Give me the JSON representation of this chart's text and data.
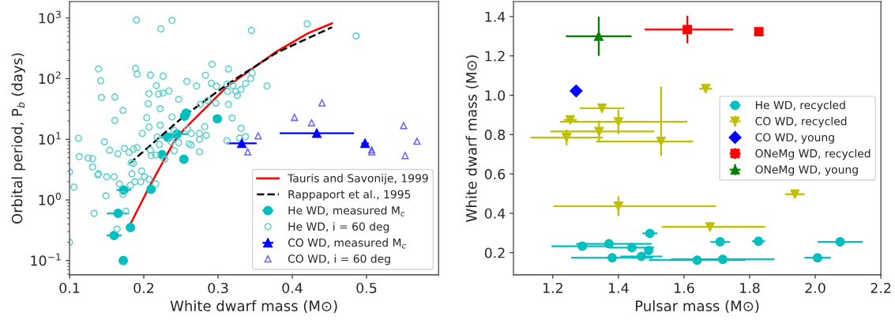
{
  "chart_data": [
    {
      "type": "scatter",
      "xlabel": "White dwarf mass (M⊙)",
      "ylabel": "Orbital period, P$_{b}$ (days)",
      "log": "y",
      "legend": "lower right",
      "grid": false,
      "xlim": [
        0.1,
        0.597
      ],
      "ylim": [
        0.058,
        1870
      ],
      "xticks": [
        0.1,
        0.2,
        0.3,
        0.4,
        0.5
      ],
      "yticks": [
        {
          "value": 0.1,
          "label": "10$^{−1}$"
        },
        {
          "value": 1,
          "label": "10$^{0}$"
        },
        {
          "value": 10,
          "label": "10$^{1}$"
        },
        {
          "value": 100,
          "label": "10$^{2}$"
        },
        {
          "value": 1000,
          "label": "10$^{3}$"
        }
      ],
      "series": [
        {
          "type": "line",
          "name": "Tauris and Savonije, 1999",
          "color": "#ff0000",
          "line_style": "solid",
          "x": [
            0.181,
            0.2086,
            0.2406,
            0.2548,
            0.3116,
            0.379,
            0.4216,
            0.4536
          ],
          "values": [
            0.38,
            1.75,
            9.06,
            14.9,
            73,
            282,
            566,
            820
          ]
        },
        {
          "type": "line",
          "name": "Rappaport et al., 1995",
          "color": "#000000",
          "line_style": "dashed",
          "x": [
            0.181,
            0.1909,
            0.2548,
            0.315,
            0.379,
            0.4536
          ],
          "values": [
            4.0,
            5.1,
            24.5,
            85,
            269,
            707
          ]
        },
        {
          "type": "scatter",
          "name": "He WD, measured M$_{c}$",
          "color": "#00bfbf",
          "marker": "circle",
          "x": [
            0.2548,
            0.257,
            0.299,
            0.2324,
            0.2448,
            0.2246,
            0.254,
            0.173,
            0.2097,
            0.1653,
            0.182,
            0.16,
            0.1724
          ],
          "values": [
            24,
            27,
            21.8,
            10.8,
            12.2,
            5.6,
            4.7,
            1.46,
            1.5,
            0.6,
            0.35,
            0.26,
            0.1
          ],
          "xerrors": [
            null,
            null,
            null,
            0.012,
            0.015,
            null,
            null,
            0.01,
            null,
            0.015,
            0.005,
            0.01,
            null
          ]
        },
        {
          "type": "scatter",
          "name": "He WD, i = 60 deg",
          "color": "#5fd0d0",
          "marker": "circle-open",
          "x": [
            0.19,
            0.238,
            0.223,
            0.345,
            0.42,
            0.486,
            0.139,
            0.142,
            0.189,
            0.191,
            0.209,
            0.226,
            0.292,
            0.314,
            0.283,
            0.143,
            0.161,
            0.217,
            0.207,
            0.22,
            0.226,
            0.234,
            0.258,
            0.271,
            0.291,
            0.298,
            0.312,
            0.32,
            0.313,
            0.324,
            0.326,
            0.331,
            0.337,
            0.344,
            0.346,
            0.366,
            0.247,
            0.286,
            0.276,
            0.297,
            0.314,
            0.206,
            0.222,
            0.172,
            0.204,
            0.238,
            0.319,
            0.161,
            0.222,
            0.207,
            0.282,
            0.331,
            0.259,
            0.198,
            0.241,
            0.275,
            0.284,
            0.264,
            0.112,
            0.218,
            0.275,
            0.312,
            0.329,
            0.337,
            0.147,
            0.221,
            0.237,
            0.247,
            0.261,
            0.264,
            0.154,
            0.165,
            0.174,
            0.18,
            0.186,
            0.191,
            0.209,
            0.241,
            0.275,
            0.216,
            0.21,
            0.113,
            0.125,
            0.131,
            0.131,
            0.138,
            0.139,
            0.15,
            0.16,
            0.167,
            0.172,
            0.182,
            0.184,
            0.188,
            0.196,
            0.201,
            0.197,
            0.207,
            0.216,
            0.149,
            0.133,
            0.176,
            0.164,
            0.106,
            0.183,
            0.186,
            0.228,
            0.1,
            0.1
          ],
          "values": [
            933,
            917,
            665,
            627,
            804,
            508,
            145,
            92.5,
            148,
            119,
            115,
            110,
            173,
            144,
            114,
            49,
            50,
            77,
            57,
            56,
            58,
            63,
            90,
            76,
            84,
            75,
            81,
            77,
            61.5,
            61.5,
            53,
            66.5,
            83,
            101,
            124,
            76,
            45.6,
            43.8,
            37.7,
            39.6,
            37.7,
            38.5,
            32,
            30,
            22.7,
            23.4,
            22.5,
            20.5,
            17.1,
            16,
            16.2,
            15.2,
            14.8,
            12.5,
            14,
            12.5,
            11.6,
            12.5,
            10.4,
            11,
            10,
            9.5,
            10.5,
            11.1,
            9.1,
            8.2,
            9.1,
            8.8,
            8.4,
            8,
            6.6,
            5.8,
            7.1,
            6.1,
            6.9,
            7.3,
            6.6,
            6.5,
            6.2,
            5.5,
            5.4,
            5.2,
            4.9,
            4.8,
            3.5,
            2.6,
            2.7,
            2.4,
            2.4,
            1.84,
            1.23,
            1.75,
            2.7,
            2.0,
            2.0,
            2.4,
            3.0,
            2.2,
            1.84,
            1.17,
            0.6,
            0.65,
            0.33,
            1.63,
            4.1,
            4.0,
            4.7,
            0.2,
            2.9
          ]
        },
        {
          "type": "scatter",
          "name": "CO WD, measured M$_{c}$",
          "color": "#0000ff",
          "marker": "triangle",
          "x": [
            0.332,
            0.433,
            0.498
          ],
          "values": [
            8.6,
            12.6,
            8.6
          ],
          "xerrors": [
            0.02,
            0.05,
            0.005
          ]
        },
        {
          "type": "scatter",
          "name": "CO WD, i = 60 deg",
          "color": "#6666ff",
          "marker": "triangle-open",
          "x": [
            0.44,
            0.403,
            0.426,
            0.354,
            0.34,
            0.55,
            0.568,
            0.507,
            0.507,
            0.552
          ],
          "values": [
            40,
            23,
            18.7,
            11.4,
            6.2,
            16.8,
            9.3,
            6.7,
            6.2,
            5.4
          ]
        }
      ]
    },
    {
      "type": "scatter",
      "xlabel": "Pulsar mass (M⊙)",
      "ylabel": "White dwarf mass (M⊙)",
      "legend": "right",
      "grid": false,
      "xlim": [
        1.08,
        2.2
      ],
      "ylim": [
        0.087,
        1.476
      ],
      "xticks": [
        1.2,
        1.4,
        1.6,
        1.8,
        {
          "value": 2,
          "label": "2.0"
        },
        2.2
      ],
      "yticks": [
        0.2,
        0.4,
        0.6,
        0.8,
        {
          "value": 1,
          "label": "1.0"
        },
        1.2,
        1.4
      ],
      "series": [
        {
          "name": "He WD, recycled",
          "color": "#00bfbf",
          "marker": "circle",
          "x": [
            1.496,
            1.371,
            1.29,
            1.441,
            1.492,
            1.71,
            1.827,
            2.076,
            1.381,
            1.47,
            1.64,
            1.718,
            2.007
          ],
          "values": [
            0.298,
            0.245,
            0.233,
            0.226,
            0.211,
            0.255,
            0.258,
            0.255,
            0.174,
            0.181,
            0.162,
            0.166,
            0.174
          ],
          "xerrors": [
            0.023,
            [
              1.271,
              1.501
            ],
            0.094,
            0.068,
            0.01,
            0.03,
            0.02,
            0.069,
            0.125,
            0.064,
            0.147,
            0.158,
            0.04
          ]
        },
        {
          "name": "CO WD, recycled",
          "color": "#bfbf00",
          "marker": "triangle-down",
          "x": [
            1.666,
            1.35,
            1.253,
            1.4,
            1.341,
            1.242,
            1.53,
            1.938,
            1.4,
            1.679
          ],
          "values": [
            1.033,
            0.934,
            0.875,
            0.865,
            0.816,
            0.785,
            0.765,
            0.497,
            0.436,
            0.331
          ],
          "xerrors": [
            0.02,
            0.068,
            0.02,
            [
              1.222,
              1.61
            ],
            [
              1.192,
              1.51
            ],
            0.11,
            [
              1.332,
              1.628
            ],
            0.03,
            [
              1.202,
              1.698
            ],
            [
              1.532,
              1.848
            ]
          ],
          "errors": [
            null,
            null,
            null,
            0.062,
            0.055,
            0.04,
            [
              0.692,
              1.043
            ],
            null,
            0.05,
            null
          ]
        },
        {
          "name": "CO WD, young",
          "color": "#0000ff",
          "marker": "diamond",
          "x": [
            1.271
          ],
          "values": [
            1.022
          ]
        },
        {
          "name": "ONeMg WD, recycled",
          "color": "#ff0000",
          "marker": "square",
          "x": [
            1.61,
            1.828
          ],
          "values": [
            1.334,
            1.323
          ],
          "xerrors": [
            [
              1.48,
              1.75
            ],
            null
          ],
          "errors": [
            0.07,
            null
          ]
        },
        {
          "name": "ONeMg WD, young",
          "color": "#008000",
          "marker": "triangle",
          "x": [
            1.34
          ],
          "values": [
            1.3
          ],
          "xerrors": [
            0.1
          ],
          "errors": [
            0.1
          ]
        }
      ]
    }
  ]
}
